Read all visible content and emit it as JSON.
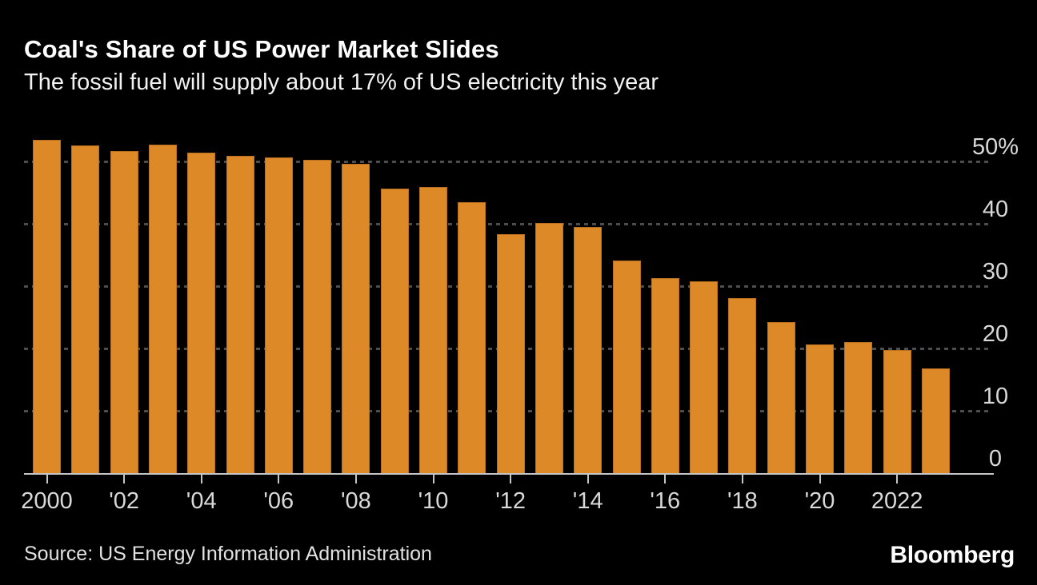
{
  "header": {
    "title": "Coal's Share of US Power Market Slides",
    "subtitle": "The fossil fuel will supply about 17% of US electricity this year"
  },
  "footer": {
    "source": "Source: US Energy Information Administration",
    "brand": "Bloomberg"
  },
  "colors": {
    "background": "#000000",
    "bar": "#DE8927",
    "gridline": "#4d4d4d",
    "axis_line": "#c6c6c6",
    "tick_label": "#d9d9d9",
    "title": "#ffffff",
    "subtitle": "#f2f2f2",
    "source_text": "#e2e2e2",
    "brand_text": "#ffffff"
  },
  "chart_data": {
    "type": "bar",
    "title": "Coal's Share of US Power Market Slides",
    "subtitle": "The fossil fuel will supply about 17% of US electricity this year",
    "unit": "%",
    "categories": [
      2000,
      2001,
      2002,
      2003,
      2004,
      2005,
      2006,
      2007,
      2008,
      2009,
      2010,
      2011,
      2012,
      2013,
      2014,
      2015,
      2016,
      2017,
      2018,
      2019,
      2020,
      2021,
      2022,
      2023
    ],
    "values": [
      53.5,
      52.6,
      51.7,
      52.7,
      51.5,
      51.0,
      50.7,
      50.3,
      49.7,
      45.7,
      46.0,
      43.6,
      38.4,
      40.2,
      39.6,
      34.2,
      31.4,
      30.9,
      28.2,
      24.3,
      20.8,
      21.1,
      19.8,
      16.9
    ],
    "ylim": [
      0,
      55
    ],
    "yticks": [
      0,
      10,
      20,
      30,
      40,
      50
    ],
    "ytick_labels": [
      "0",
      "10",
      "20",
      "30",
      "40",
      "50%"
    ],
    "xtick_years": [
      2000,
      2002,
      2004,
      2006,
      2008,
      2010,
      2012,
      2014,
      2016,
      2018,
      2020,
      2022
    ],
    "xtick_labels": [
      "2000",
      "'02",
      "'04",
      "'06",
      "'08",
      "'10",
      "'12",
      "'14",
      "'16",
      "'18",
      "'20",
      "2022"
    ],
    "grid": "horizontal-dashed",
    "legend_position": "none",
    "bar_color": "#DE8927",
    "source": "US Energy Information Administration"
  }
}
